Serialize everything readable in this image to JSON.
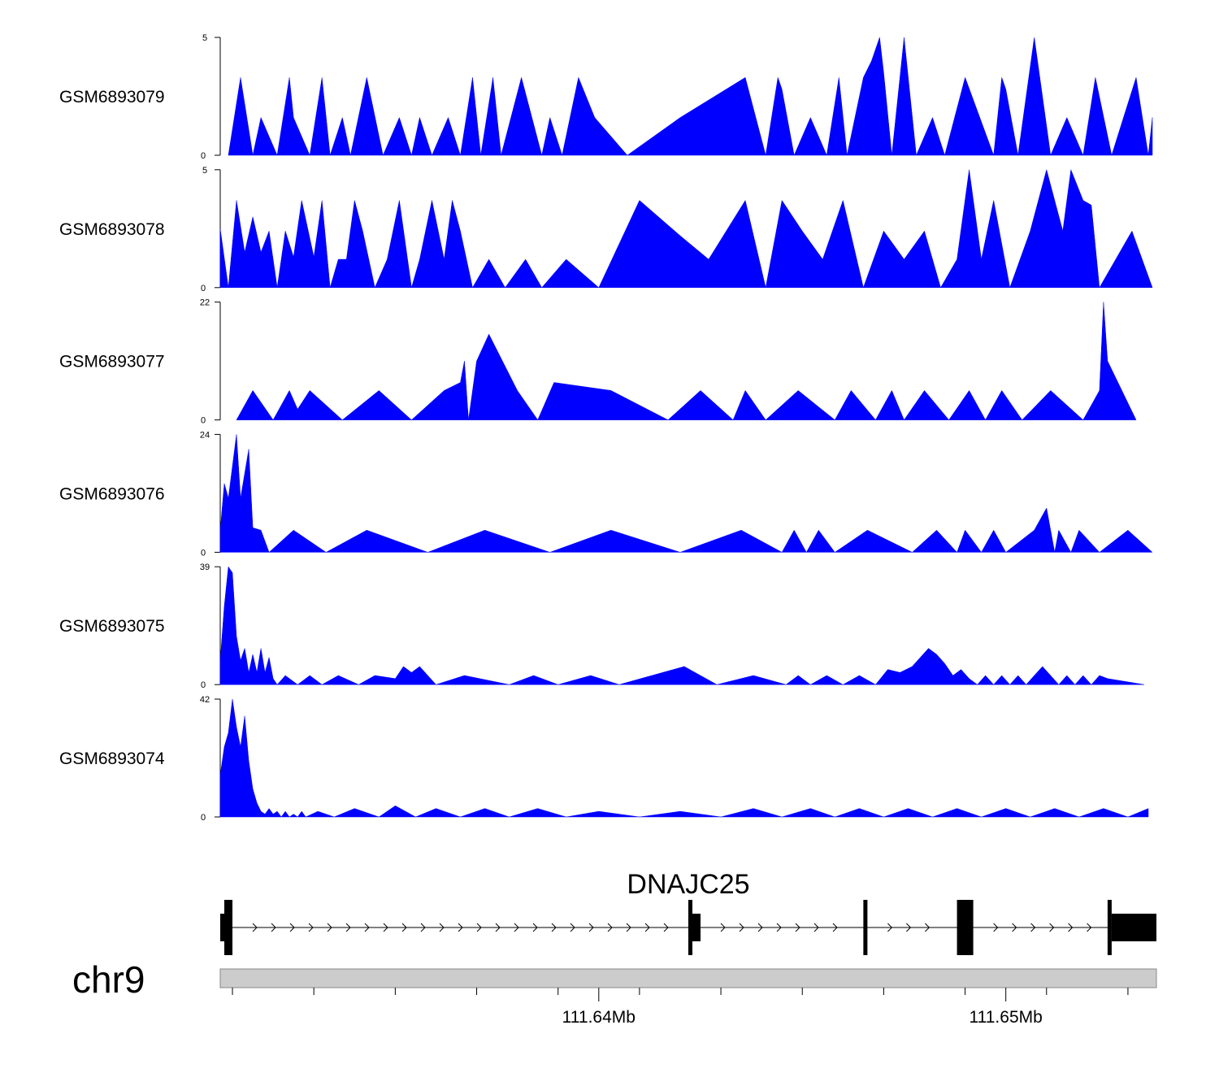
{
  "chart_data": {
    "type": "area",
    "title": "",
    "chromosome": "chr9",
    "xlim": [
      111.6307,
      111.6537
    ],
    "x_axis": {
      "ticks": [
        111.631,
        111.633,
        111.635,
        111.637,
        111.639,
        111.641,
        111.643,
        111.645,
        111.647,
        111.649,
        111.651,
        111.653
      ],
      "labeled_ticks": [
        {
          "value": 111.64,
          "label": "111.64Mb"
        },
        {
          "value": 111.65,
          "label": "111.65Mb"
        }
      ]
    },
    "fill_color": "#0000ff",
    "tracks": [
      {
        "name": "GSM6893079",
        "ylim": [
          0,
          5
        ],
        "ymax_label": "5",
        "ymin_label": "0",
        "x": [
          111.6309,
          111.6312,
          111.6315,
          111.6317,
          111.6321,
          111.6324,
          111.6325,
          111.6329,
          111.6332,
          111.6334,
          111.6337,
          111.6339,
          111.6343,
          111.6347,
          111.6351,
          111.6354,
          111.6356,
          111.6359,
          111.6363,
          111.6366,
          111.6369,
          111.6371,
          111.6374,
          111.6376,
          111.6381,
          111.6386,
          111.6388,
          111.6391,
          111.6395,
          111.6399,
          111.6407,
          111.642,
          111.6436,
          111.6441,
          111.6444,
          111.6445,
          111.6448,
          111.6452,
          111.6456,
          111.6459,
          111.6461,
          111.6465,
          111.6467,
          111.6469,
          111.647,
          111.6472,
          111.6475,
          111.6478,
          111.6482,
          111.6485,
          111.649,
          111.6497,
          111.6499,
          111.65,
          111.6503,
          111.6507,
          111.6511,
          111.6515,
          111.6519,
          111.6522,
          111.6526,
          111.6532,
          111.6535,
          111.6536
        ],
        "y": [
          0,
          3.3,
          0,
          1.6,
          0,
          3.3,
          1.6,
          0,
          3.3,
          0,
          1.6,
          0,
          3.3,
          0,
          1.6,
          0,
          1.6,
          0,
          1.6,
          0,
          3.3,
          0,
          3.3,
          0,
          3.3,
          0,
          1.6,
          0,
          3.3,
          1.6,
          0,
          1.6,
          3.3,
          0,
          3.3,
          2.8,
          0,
          1.6,
          0,
          3.3,
          0,
          3.3,
          4,
          5,
          3.5,
          0,
          5,
          0,
          1.6,
          0,
          3.3,
          0,
          3.3,
          2.8,
          0,
          5,
          0,
          1.6,
          0,
          3.3,
          0,
          3.3,
          0,
          1.6
        ]
      },
      {
        "name": "GSM6893078",
        "ylim": [
          0,
          5
        ],
        "ymax_label": "5",
        "ymin_label": "0",
        "x": [
          111.6307,
          111.6309,
          111.6311,
          111.6313,
          111.6315,
          111.6317,
          111.6319,
          111.6321,
          111.6323,
          111.6325,
          111.6327,
          111.633,
          111.6332,
          111.6334,
          111.6336,
          111.6338,
          111.634,
          111.6342,
          111.6345,
          111.6348,
          111.6351,
          111.6354,
          111.6356,
          111.6359,
          111.6362,
          111.6364,
          111.6366,
          111.6369,
          111.6373,
          111.6377,
          111.6382,
          111.6386,
          111.6392,
          111.64,
          111.641,
          111.642,
          111.6427,
          111.6436,
          111.6441,
          111.6445,
          111.645,
          111.6455,
          111.646,
          111.6465,
          111.647,
          111.6475,
          111.648,
          111.6484,
          111.6488,
          111.6491,
          111.6494,
          111.6497,
          111.6501,
          111.6506,
          111.651,
          111.6514,
          111.6516,
          111.6519,
          111.6521,
          111.6523,
          111.6527,
          111.6531,
          111.6536
        ],
        "y": [
          2.5,
          0,
          3.7,
          1.5,
          3,
          1.5,
          2.4,
          0,
          2.4,
          1.3,
          3.7,
          1.3,
          3.7,
          0,
          1.2,
          1.2,
          3.7,
          2.4,
          0,
          1.2,
          3.7,
          0,
          1.2,
          3.7,
          1.2,
          3.7,
          2.4,
          0,
          1.2,
          0,
          1.2,
          0,
          1.2,
          0,
          3.7,
          2.2,
          1.2,
          3.7,
          0,
          3.7,
          2.4,
          1.2,
          3.7,
          0,
          2.4,
          1.2,
          2.4,
          0,
          1.2,
          5,
          1.2,
          3.7,
          0,
          2.4,
          5,
          2.4,
          5,
          3.7,
          3.5,
          0,
          1.2,
          2.4,
          0
        ]
      },
      {
        "name": "GSM6893077",
        "ylim": [
          0,
          22
        ],
        "ymax_label": "22",
        "ymin_label": "0",
        "x": [
          111.6311,
          111.6315,
          111.632,
          111.6324,
          111.6326,
          111.6329,
          111.6337,
          111.6346,
          111.6354,
          111.6362,
          111.6366,
          111.6367,
          111.6368,
          111.637,
          111.6373,
          111.638,
          111.6385,
          111.6389,
          111.6403,
          111.6417,
          111.6425,
          111.6433,
          111.6436,
          111.6441,
          111.6449,
          111.6458,
          111.6462,
          111.6468,
          111.6472,
          111.6475,
          111.648,
          111.6486,
          111.6491,
          111.6495,
          111.6499,
          111.6504,
          111.6511,
          111.6519,
          111.6523,
          111.6524,
          111.6525,
          111.6532
        ],
        "y": [
          0,
          5.5,
          0,
          5.5,
          2,
          5.5,
          0,
          5.5,
          0,
          5.5,
          7,
          11,
          0,
          11,
          16,
          5.5,
          0,
          7,
          5.5,
          0,
          5.5,
          0,
          5.5,
          0,
          5.5,
          0,
          5.5,
          0,
          5.5,
          0,
          5.5,
          0,
          5.5,
          0,
          5.5,
          0,
          5.5,
          0,
          5.5,
          22,
          11,
          0
        ]
      },
      {
        "name": "GSM6893076",
        "ylim": [
          0,
          24
        ],
        "ymax_label": "24",
        "ymin_label": "0",
        "x": [
          111.6307,
          111.6308,
          111.6309,
          111.6311,
          111.6312,
          111.6314,
          111.6315,
          111.6317,
          111.6319,
          111.6325,
          111.6333,
          111.6343,
          111.6358,
          111.6372,
          111.6388,
          111.6403,
          111.642,
          111.6435,
          111.6445,
          111.6448,
          111.6451,
          111.6454,
          111.6458,
          111.6466,
          111.6477,
          111.6483,
          111.6488,
          111.649,
          111.6494,
          111.6497,
          111.65,
          111.6507,
          111.651,
          111.6512,
          111.6513,
          111.6516,
          111.6518,
          111.6523,
          111.653,
          111.6536
        ],
        "y": [
          4.5,
          14,
          11,
          24,
          11,
          21,
          5,
          4.5,
          0,
          4.5,
          0,
          4.5,
          0,
          4.5,
          0,
          4.5,
          0,
          4.5,
          0,
          4.5,
          0,
          4.5,
          0,
          4.5,
          0,
          4.5,
          0,
          4.5,
          0,
          4.5,
          0,
          4.5,
          9,
          0,
          4.5,
          0,
          4.5,
          0,
          4.5,
          0
        ]
      },
      {
        "name": "GSM6893075",
        "ylim": [
          0,
          39
        ],
        "ymax_label": "39",
        "ymin_label": "0",
        "x": [
          111.6307,
          111.6308,
          111.6309,
          111.631,
          111.6311,
          111.6312,
          111.6313,
          111.6314,
          111.6315,
          111.6316,
          111.6317,
          111.6318,
          111.6319,
          111.632,
          111.6321,
          111.6323,
          111.6326,
          111.6329,
          111.6332,
          111.6336,
          111.6341,
          111.6345,
          111.635,
          111.6352,
          111.6354,
          111.6356,
          111.6358,
          111.636,
          111.6367,
          111.6378,
          111.6384,
          111.639,
          111.6398,
          111.6405,
          111.6421,
          111.6429,
          111.6438,
          111.6446,
          111.6449,
          111.6452,
          111.6456,
          111.646,
          111.6464,
          111.6468,
          111.6471,
          111.6474,
          111.6477,
          111.6479,
          111.6481,
          111.6483,
          111.6485,
          111.6487,
          111.6489,
          111.6491,
          111.6493,
          111.6495,
          111.6497,
          111.6499,
          111.6501,
          111.6503,
          111.6505,
          111.6507,
          111.6509,
          111.6511,
          111.6513,
          111.6515,
          111.6517,
          111.6519,
          111.6521,
          111.6523,
          111.6525,
          111.6534
        ],
        "y": [
          8,
          26,
          39,
          37,
          16,
          8,
          12,
          4,
          10,
          4,
          12,
          4,
          9,
          2,
          0,
          3,
          0,
          3,
          0,
          3,
          0,
          3,
          2,
          6,
          4,
          6,
          3,
          0,
          3,
          0,
          3,
          0,
          3,
          0,
          6,
          0,
          3,
          0,
          3,
          0,
          3,
          0,
          3,
          0,
          5,
          4,
          6,
          9,
          12,
          10,
          7,
          3,
          5,
          2,
          0,
          3,
          0,
          3,
          0,
          3,
          0,
          3,
          6,
          3,
          0,
          3,
          0,
          3,
          0,
          3,
          2,
          0
        ]
      },
      {
        "name": "GSM6893074",
        "ylim": [
          0,
          42
        ],
        "ymax_label": "42",
        "ymin_label": "0",
        "x": [
          111.6307,
          111.6308,
          111.6309,
          111.631,
          111.6311,
          111.6312,
          111.6313,
          111.6314,
          111.6315,
          111.6316,
          111.6317,
          111.6318,
          111.6319,
          111.632,
          111.6321,
          111.6322,
          111.6323,
          111.6324,
          111.6325,
          111.6326,
          111.6327,
          111.6328,
          111.6331,
          111.6335,
          111.634,
          111.6346,
          111.635,
          111.6355,
          111.636,
          111.6366,
          111.6372,
          111.6378,
          111.6385,
          111.6392,
          111.64,
          111.641,
          111.642,
          111.643,
          111.6438,
          111.6445,
          111.6452,
          111.6458,
          111.6464,
          111.647,
          111.6476,
          111.6482,
          111.6488,
          111.6494,
          111.65,
          111.6506,
          111.6512,
          111.6518,
          111.6524,
          111.653,
          111.6535
        ],
        "y": [
          15,
          25,
          30,
          42,
          32,
          25,
          36,
          20,
          10,
          5,
          2,
          1,
          3,
          1,
          2,
          0,
          2,
          0,
          1,
          0,
          2,
          0,
          2,
          0,
          3,
          0,
          4,
          0,
          3,
          0,
          3,
          0,
          3,
          0,
          2,
          0,
          2,
          0,
          3,
          0,
          3,
          0,
          3,
          0,
          3,
          0,
          3,
          0,
          3,
          0,
          3,
          0,
          3,
          0,
          3
        ]
      }
    ],
    "gene_track": {
      "gene_name": "DNAJC25",
      "strand": "+",
      "exons": [
        {
          "start": 111.6307,
          "end": 111.6308,
          "kind": "utr"
        },
        {
          "start": 111.6308,
          "end": 111.631,
          "kind": "cds"
        },
        {
          "start": 111.6422,
          "end": 111.6423,
          "kind": "cds"
        },
        {
          "start": 111.6423,
          "end": 111.6425,
          "kind": "utr"
        },
        {
          "start": 111.6465,
          "end": 111.6466,
          "kind": "cds"
        },
        {
          "start": 111.6488,
          "end": 111.6492,
          "kind": "cds"
        },
        {
          "start": 111.6525,
          "end": 111.6526,
          "kind": "cds"
        },
        {
          "start": 111.6526,
          "end": 111.6537,
          "kind": "utr"
        }
      ]
    }
  }
}
